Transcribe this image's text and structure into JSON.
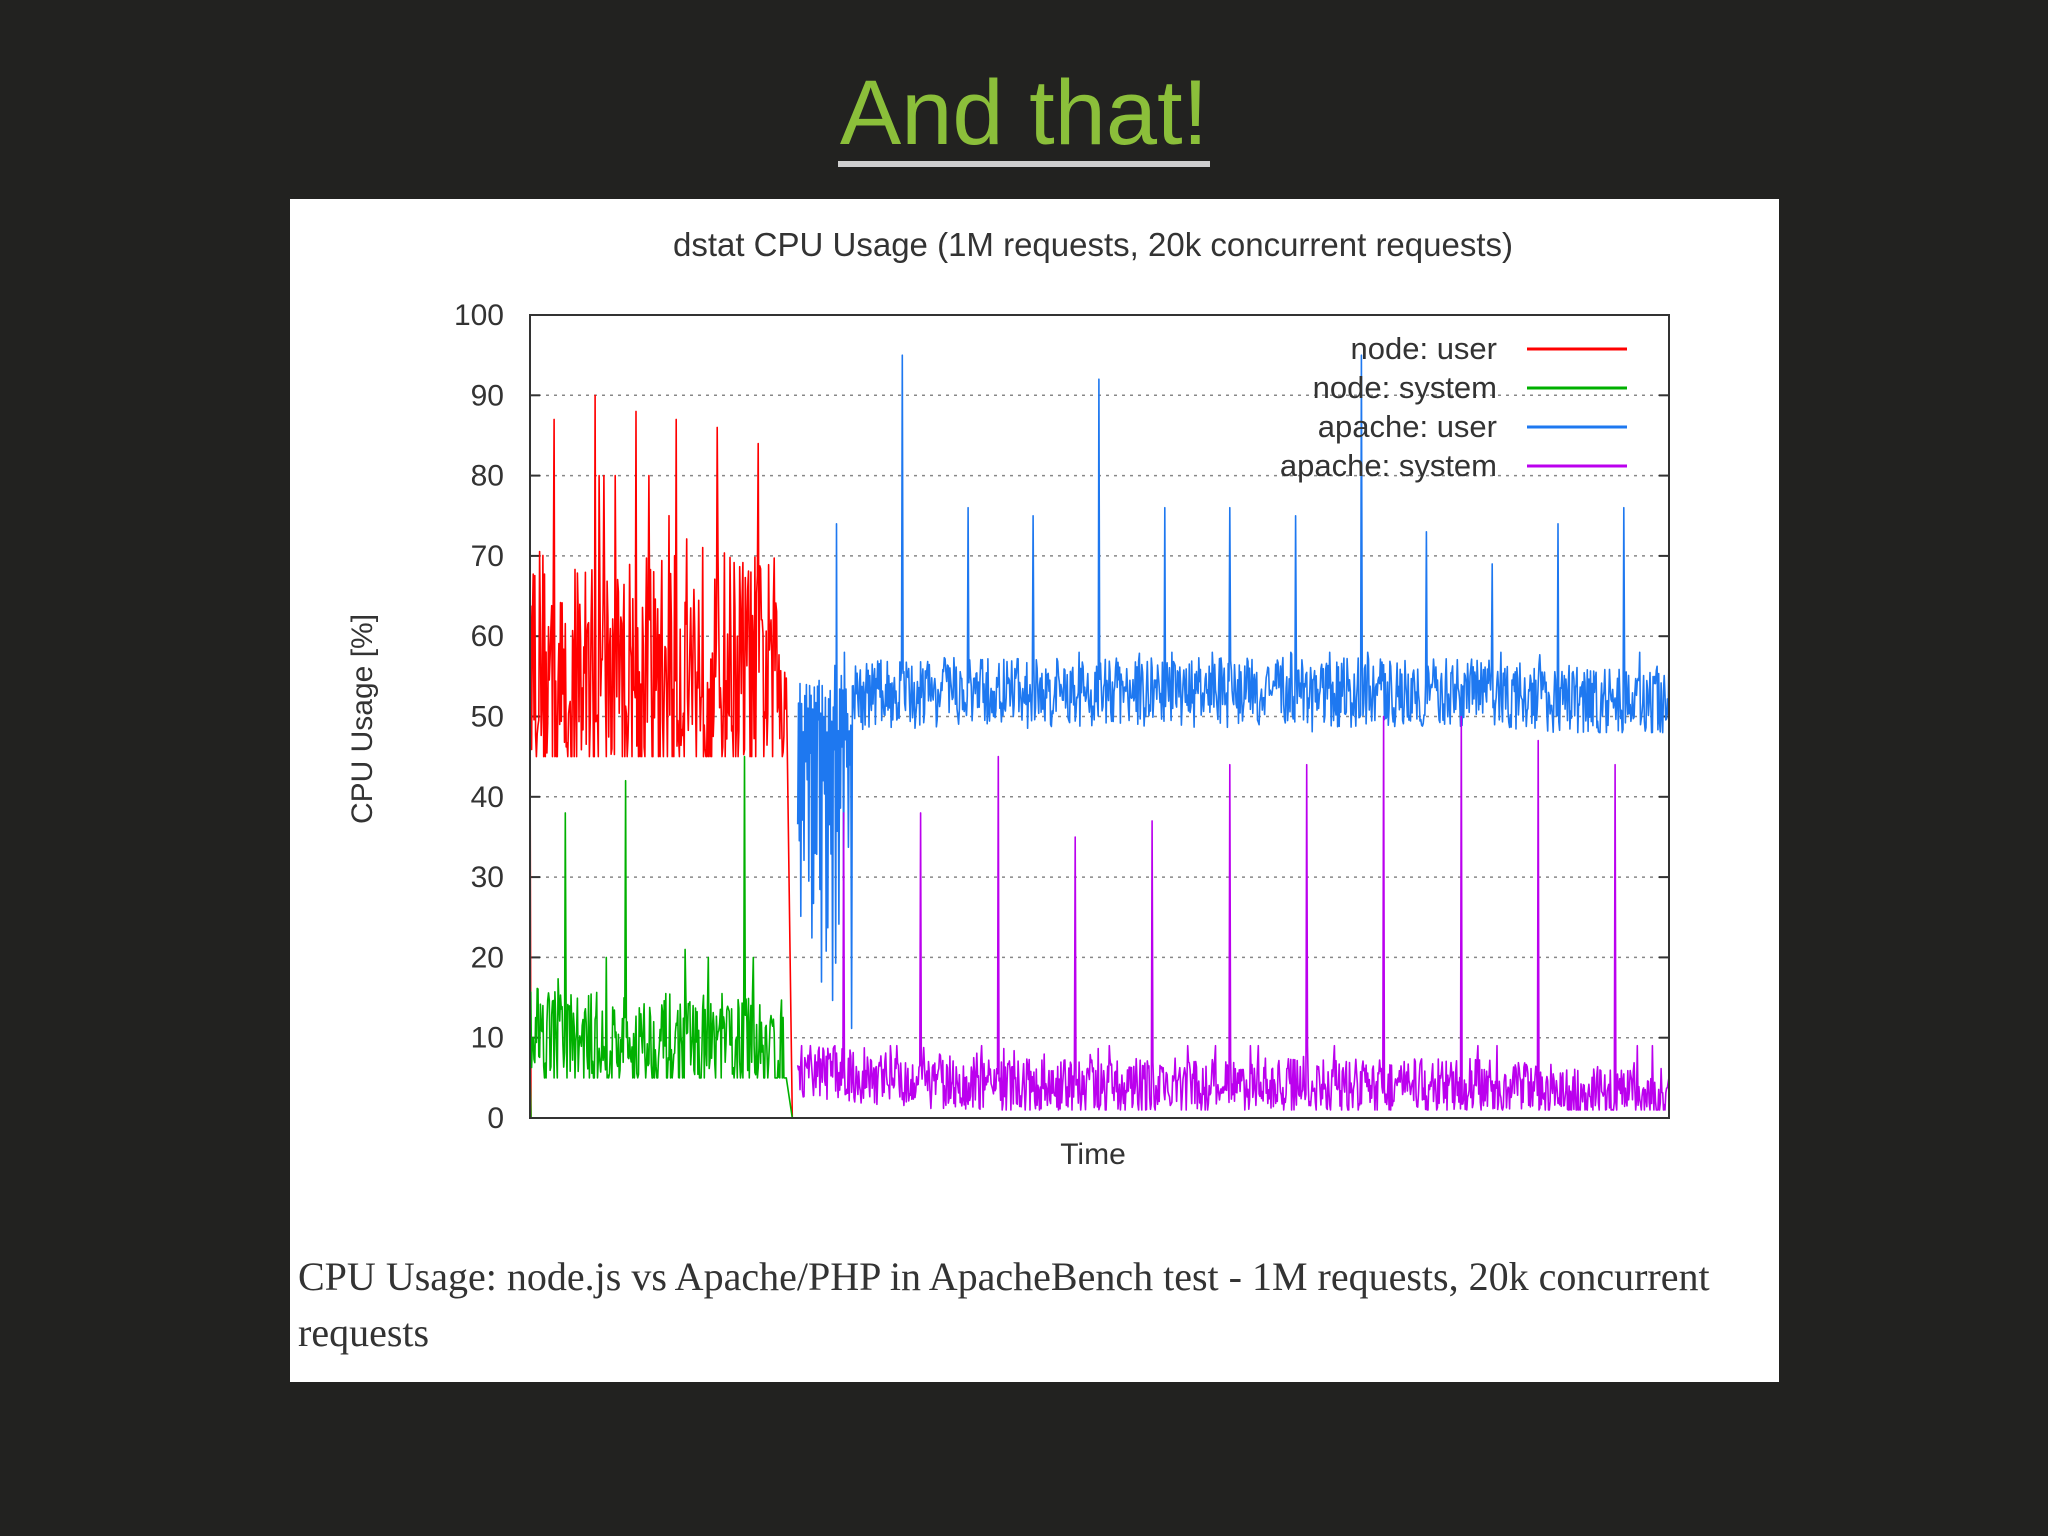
{
  "slide": {
    "title": "And that!",
    "caption": "CPU Usage: node.js vs Apache/PHP in ApacheBench test - 1M requests, 20k concurrent requests"
  },
  "colors": {
    "title": "#8bbf3a",
    "background": "#222220"
  },
  "chart_data": {
    "type": "line",
    "title": "dstat CPU Usage (1M requests, 20k concurrent requests)",
    "xlabel": "Time",
    "ylabel": "CPU Usage [%]",
    "ylim": [
      0,
      100
    ],
    "yticks": [
      "0",
      "10",
      "20",
      "30",
      "40",
      "50",
      "60",
      "70",
      "80",
      "90",
      "100"
    ],
    "grid": "dotted horizontal lines at every y tick",
    "legend": "top-right",
    "series": [
      {
        "name": "node: user",
        "color": "#ff0000",
        "segment": "first quarter of the time axis",
        "baseline": [
          60,
          52,
          55,
          55,
          55,
          55,
          57,
          56,
          55,
          55
        ],
        "noise_range": [
          45,
          80
        ],
        "peaks": [
          87,
          90,
          88,
          87,
          86,
          84
        ]
      },
      {
        "name": "node: system",
        "color": "#00b000",
        "segment": "first quarter of the time axis",
        "baseline": [
          12,
          10,
          9,
          9,
          9,
          9,
          9,
          9,
          9,
          8
        ],
        "noise_range": [
          5,
          20
        ],
        "peaks": [
          38,
          42,
          21,
          45
        ]
      },
      {
        "name": "apache: user",
        "color": "#1e78f0",
        "segment": "rest of the time axis",
        "baseline": [
          52,
          53,
          53,
          53,
          53,
          53,
          53,
          53,
          52,
          52
        ],
        "noise_range": [
          48,
          58
        ],
        "peaks": [
          74,
          95,
          76,
          75,
          92,
          76,
          76,
          75,
          95,
          73,
          69,
          74,
          76
        ]
      },
      {
        "name": "apache: system",
        "color": "#bb00ee",
        "segment": "rest of the time axis",
        "baseline": [
          6,
          5,
          4,
          4,
          4,
          4,
          4,
          4,
          3,
          3
        ],
        "noise_range": [
          1,
          9
        ],
        "peaks": [
          38,
          38,
          45,
          35,
          37,
          44,
          44,
          50,
          50,
          47,
          44
        ]
      }
    ]
  }
}
